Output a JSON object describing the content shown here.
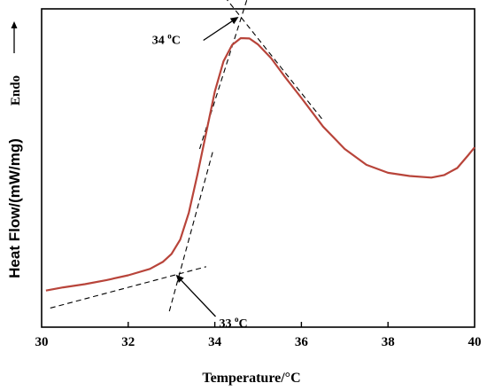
{
  "chart_data": {
    "type": "line",
    "title": "",
    "xlabel": "Temperature/°C",
    "ylabel": "Heat Flow/(mW/mg)",
    "endo_label": "Endo",
    "xlim": [
      30,
      40
    ],
    "ylim": [
      0,
      1
    ],
    "x_ticks": [
      "30",
      "32",
      "34",
      "36",
      "38",
      "40"
    ],
    "series": [
      {
        "color": "#b8443a",
        "points": [
          [
            30.1,
            0.115
          ],
          [
            30.5,
            0.125
          ],
          [
            31.0,
            0.135
          ],
          [
            31.5,
            0.148
          ],
          [
            32.0,
            0.163
          ],
          [
            32.5,
            0.183
          ],
          [
            32.8,
            0.205
          ],
          [
            33.0,
            0.23
          ],
          [
            33.2,
            0.275
          ],
          [
            33.4,
            0.36
          ],
          [
            33.6,
            0.48
          ],
          [
            33.8,
            0.61
          ],
          [
            34.0,
            0.74
          ],
          [
            34.2,
            0.835
          ],
          [
            34.4,
            0.887
          ],
          [
            34.6,
            0.908
          ],
          [
            34.8,
            0.907
          ],
          [
            35.0,
            0.888
          ],
          [
            35.3,
            0.845
          ],
          [
            35.6,
            0.79
          ],
          [
            36.0,
            0.72
          ],
          [
            36.5,
            0.63
          ],
          [
            37.0,
            0.56
          ],
          [
            37.5,
            0.51
          ],
          [
            38.0,
            0.485
          ],
          [
            38.5,
            0.475
          ],
          [
            39.0,
            0.47
          ],
          [
            39.3,
            0.478
          ],
          [
            39.6,
            0.5
          ],
          [
            39.85,
            0.54
          ],
          [
            40.0,
            0.565
          ]
        ]
      }
    ],
    "tangent_lines": [
      {
        "from": [
          30.2,
          0.06
        ],
        "to": [
          33.8,
          0.19
        ]
      },
      {
        "from": [
          32.95,
          0.05
        ],
        "to": [
          33.95,
          0.55
        ]
      },
      {
        "from": [
          33.65,
          0.56
        ],
        "to": [
          35.0,
          1.14
        ]
      },
      {
        "from": [
          34.1,
          1.06
        ],
        "to": [
          36.5,
          0.65
        ]
      }
    ],
    "annotations": [
      {
        "id": "onset",
        "value": "33",
        "unit": "C",
        "point": [
          33.1,
          0.165
        ],
        "text_at": [
          34.1,
          0.0
        ]
      },
      {
        "id": "peak",
        "value": "34",
        "unit": "C",
        "point": [
          34.55,
          0.975
        ],
        "text_at": [
          32.55,
          0.89
        ]
      }
    ]
  }
}
